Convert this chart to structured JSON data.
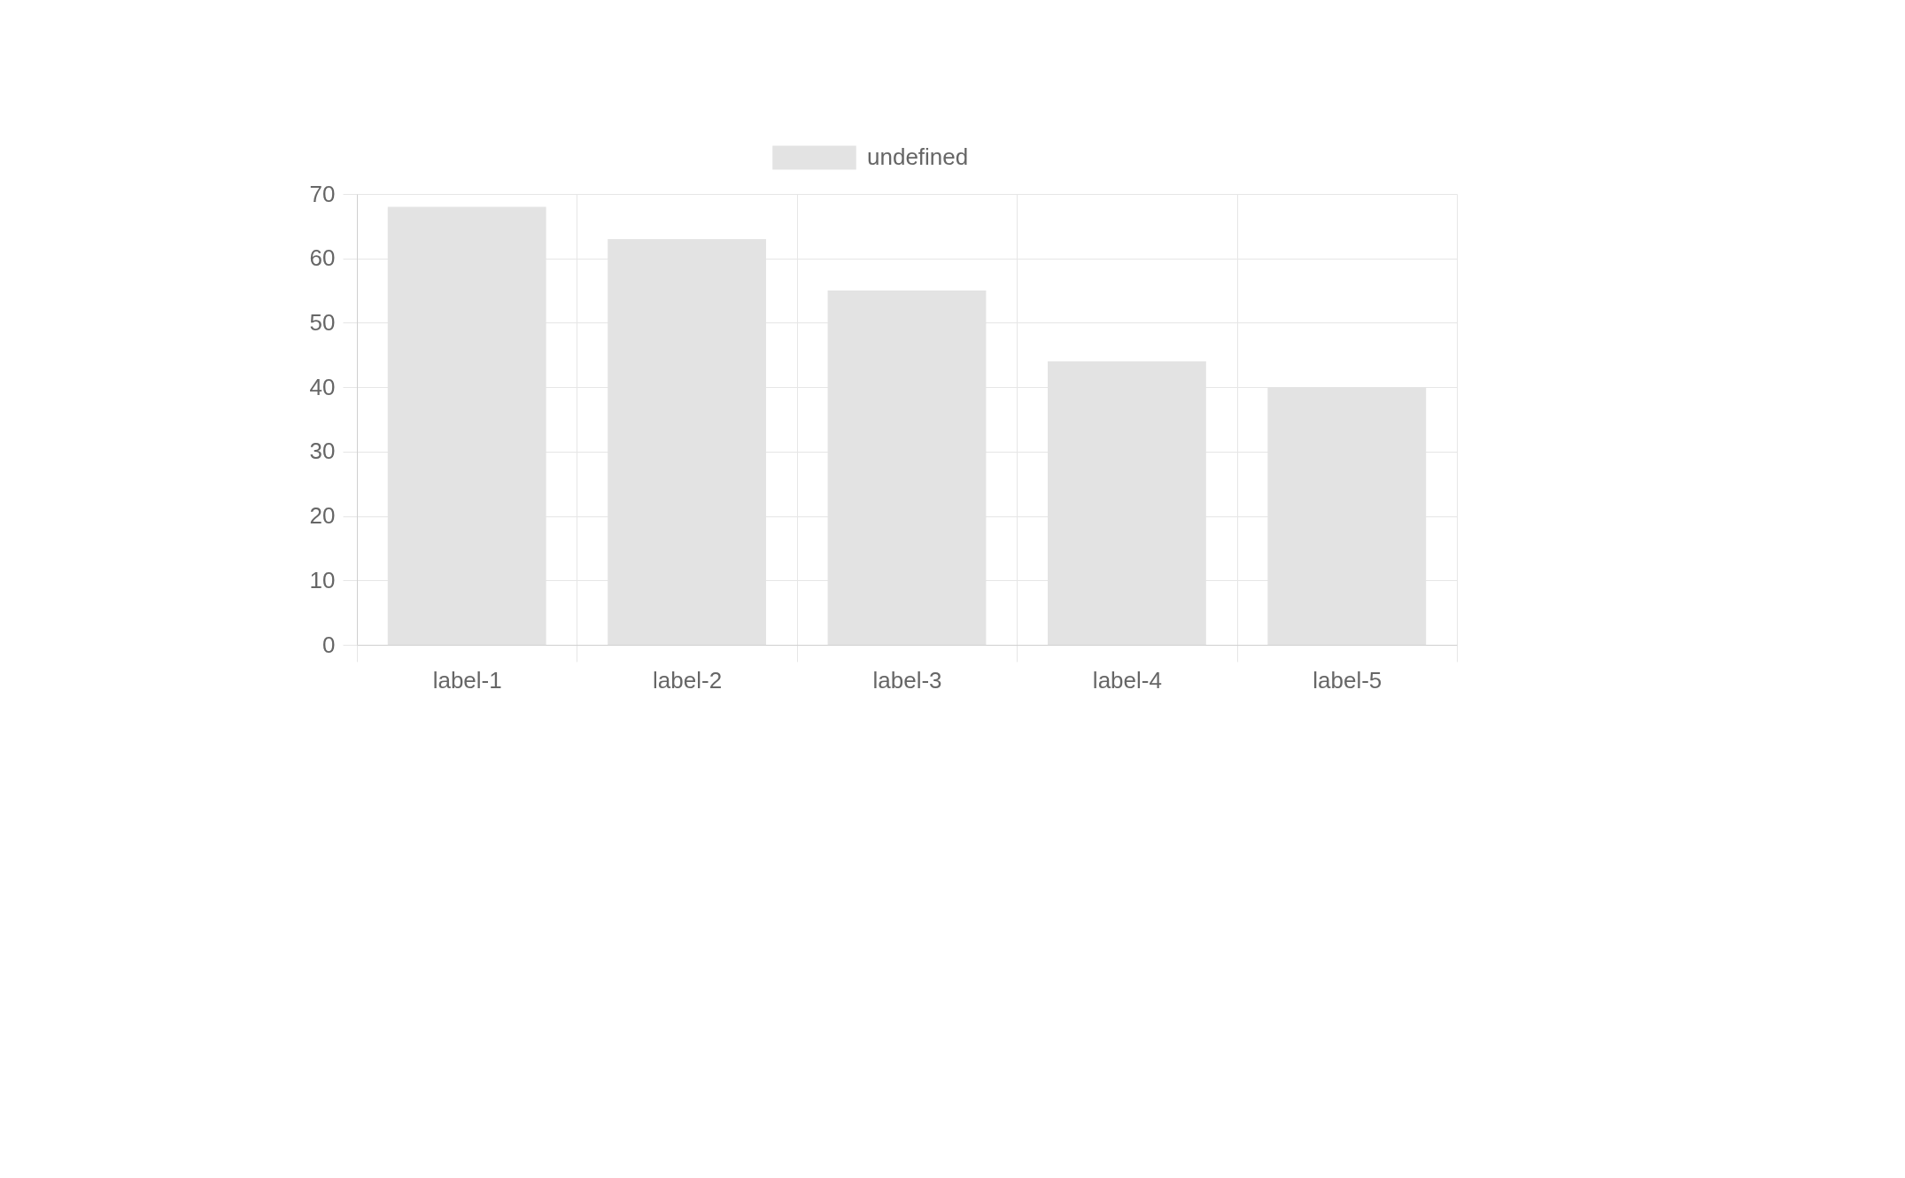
{
  "chart_data": {
    "type": "bar",
    "categories": [
      "label-1",
      "label-2",
      "label-3",
      "label-4",
      "label-5"
    ],
    "series": [
      {
        "name": "undefined",
        "color": "#e3e3e3",
        "values": [
          68,
          63,
          55,
          44,
          40
        ]
      }
    ],
    "ylim": [
      0,
      70
    ],
    "yticks": [
      0,
      10,
      20,
      30,
      40,
      50,
      60,
      70
    ],
    "grid": true,
    "legend": "top"
  }
}
